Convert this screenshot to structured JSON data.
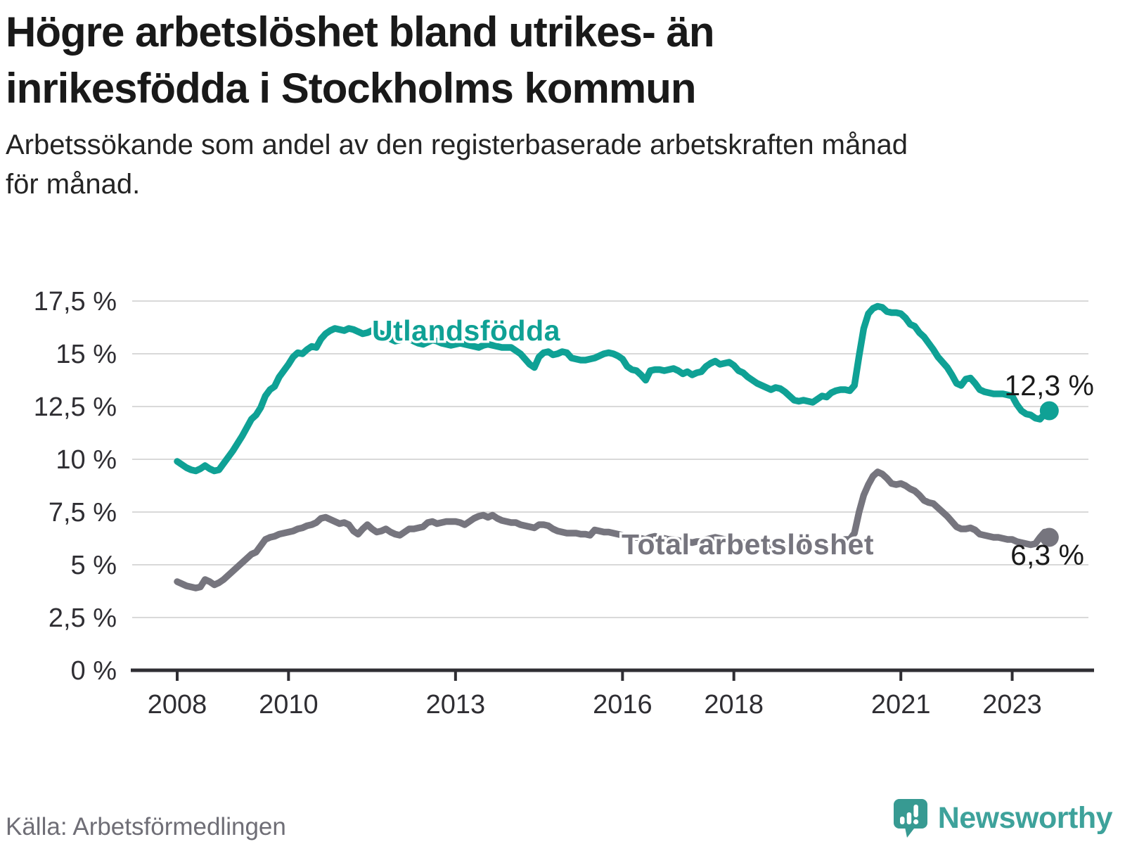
{
  "header": {
    "title": "Högre arbetslöshet bland utrikes- än\ninrikesfödda i Stockholms kommun",
    "subtitle": "Arbetssökande som andel av den registerbaserade arbetskraften månad\nför månad."
  },
  "chart_data": {
    "type": "line",
    "unit": "percent",
    "x_start_year": 2008,
    "x_end_label": "2023 (september)",
    "points_per_year": 12,
    "ylim": [
      0,
      17.5
    ],
    "grid": "horizontal",
    "y_axis": {
      "ticks": [
        {
          "value": 0,
          "label": "0 %"
        },
        {
          "value": 2.5,
          "label": "2,5 %"
        },
        {
          "value": 5,
          "label": "5 %"
        },
        {
          "value": 7.5,
          "label": "7,5 %"
        },
        {
          "value": 10,
          "label": "10 %"
        },
        {
          "value": 12.5,
          "label": "12,5 %"
        },
        {
          "value": 15,
          "label": "15 %"
        },
        {
          "value": 17.5,
          "label": "17,5 %"
        }
      ]
    },
    "x_axis": {
      "ticks": [
        {
          "value": 2008,
          "label": "2008"
        },
        {
          "value": 2010,
          "label": "2010"
        },
        {
          "value": 2013,
          "label": "2013"
        },
        {
          "value": 2016,
          "label": "2016"
        },
        {
          "value": 2018,
          "label": "2018"
        },
        {
          "value": 2021,
          "label": "2021"
        },
        {
          "value": 2023,
          "label": "2023"
        }
      ]
    },
    "series": [
      {
        "name": "Utlandsfödda",
        "color": "#0fa195",
        "end_label": "12,3 %",
        "values": [
          9.9,
          9.75,
          9.6,
          9.5,
          9.45,
          9.55,
          9.7,
          9.55,
          9.45,
          9.5,
          9.8,
          10.1,
          10.4,
          10.75,
          11.1,
          11.5,
          11.9,
          12.1,
          12.45,
          13,
          13.3,
          13.45,
          13.9,
          14.2,
          14.5,
          14.85,
          15.05,
          15,
          15.2,
          15.35,
          15.3,
          15.7,
          15.95,
          16.1,
          16.2,
          16.15,
          16.1,
          16.2,
          16.15,
          16.05,
          15.95,
          16,
          16.1,
          16.05,
          15.95,
          15.85,
          15.7,
          15.6,
          15.65,
          15.75,
          15.7,
          15.6,
          15.5,
          15.45,
          15.55,
          15.65,
          15.6,
          15.5,
          15.45,
          15.4,
          15.45,
          15.5,
          15.45,
          15.4,
          15.35,
          15.3,
          15.4,
          15.45,
          15.4,
          15.35,
          15.3,
          15.3,
          15.3,
          15.15,
          15,
          14.75,
          14.5,
          14.35,
          14.85,
          15.05,
          15.1,
          14.95,
          15,
          15.1,
          15.05,
          14.8,
          14.75,
          14.7,
          14.7,
          14.75,
          14.8,
          14.9,
          15,
          15.05,
          15,
          14.9,
          14.75,
          14.4,
          14.25,
          14.2,
          14,
          13.75,
          14.2,
          14.25,
          14.25,
          14.2,
          14.25,
          14.3,
          14.2,
          14.05,
          14.15,
          14,
          14.1,
          14.15,
          14.4,
          14.55,
          14.65,
          14.5,
          14.55,
          14.6,
          14.45,
          14.2,
          14.1,
          13.9,
          13.75,
          13.6,
          13.5,
          13.4,
          13.3,
          13.4,
          13.35,
          13.2,
          13,
          12.8,
          12.75,
          12.8,
          12.75,
          12.7,
          12.85,
          13,
          12.95,
          13.15,
          13.25,
          13.3,
          13.3,
          13.25,
          13.5,
          14.9,
          16.2,
          16.9,
          17.15,
          17.25,
          17.2,
          17,
          16.95,
          16.95,
          16.9,
          16.7,
          16.4,
          16.3,
          16,
          15.8,
          15.5,
          15.2,
          14.85,
          14.6,
          14.35,
          14,
          13.6,
          13.5,
          13.8,
          13.85,
          13.6,
          13.3,
          13.2,
          13.15,
          13.1,
          13.1,
          13.1,
          13.05,
          13,
          12.6,
          12.3,
          12.15,
          12.1,
          11.95,
          11.9,
          12.15,
          12.3
        ]
      },
      {
        "name": "Total arbetslöshet",
        "color": "#76757e",
        "end_label": "6,3 %",
        "values": [
          4.2,
          4.1,
          4,
          3.95,
          3.9,
          3.95,
          4.3,
          4.2,
          4.05,
          4.15,
          4.3,
          4.5,
          4.7,
          4.9,
          5.1,
          5.3,
          5.5,
          5.6,
          5.9,
          6.2,
          6.3,
          6.35,
          6.45,
          6.5,
          6.55,
          6.6,
          6.7,
          6.75,
          6.85,
          6.9,
          7,
          7.2,
          7.25,
          7.15,
          7.05,
          6.95,
          7,
          6.9,
          6.6,
          6.45,
          6.7,
          6.9,
          6.7,
          6.55,
          6.6,
          6.7,
          6.55,
          6.45,
          6.4,
          6.55,
          6.7,
          6.7,
          6.75,
          6.8,
          7,
          7.05,
          6.95,
          7,
          7.05,
          7.05,
          7.05,
          7,
          6.9,
          7.05,
          7.2,
          7.3,
          7.35,
          7.25,
          7.35,
          7.2,
          7.1,
          7.05,
          7,
          7,
          6.9,
          6.85,
          6.8,
          6.75,
          6.9,
          6.9,
          6.85,
          6.7,
          6.6,
          6.55,
          6.5,
          6.5,
          6.5,
          6.45,
          6.45,
          6.4,
          6.65,
          6.6,
          6.55,
          6.55,
          6.5,
          6.45,
          6.4,
          6.35,
          6.3,
          6.3,
          6.25,
          6.2,
          6.3,
          6.35,
          6.3,
          6.25,
          6.2,
          6.2,
          6.15,
          6.1,
          6.1,
          6.05,
          6.1,
          6.1,
          6.2,
          6.25,
          6.3,
          6.25,
          6.2,
          6.2,
          6.15,
          6.1,
          6.05,
          6,
          5.95,
          5.9,
          5.9,
          5.9,
          5.85,
          5.9,
          5.9,
          5.85,
          5.8,
          5.75,
          5.75,
          5.8,
          5.8,
          5.8,
          5.9,
          6,
          5.95,
          6.05,
          6.1,
          6.15,
          6.2,
          6.2,
          6.5,
          7.5,
          8.3,
          8.8,
          9.2,
          9.4,
          9.3,
          9.1,
          8.85,
          8.8,
          8.85,
          8.75,
          8.6,
          8.5,
          8.3,
          8.05,
          7.95,
          7.9,
          7.7,
          7.5,
          7.3,
          7.05,
          6.8,
          6.7,
          6.7,
          6.75,
          6.65,
          6.45,
          6.4,
          6.35,
          6.3,
          6.3,
          6.25,
          6.2,
          6.2,
          6.1,
          6.05,
          6,
          5.95,
          6,
          6.3,
          6.55,
          6.3
        ]
      }
    ]
  },
  "footer": {
    "source": "Källa: Arbetsförmedlingen",
    "brand": "Newsworthy"
  }
}
